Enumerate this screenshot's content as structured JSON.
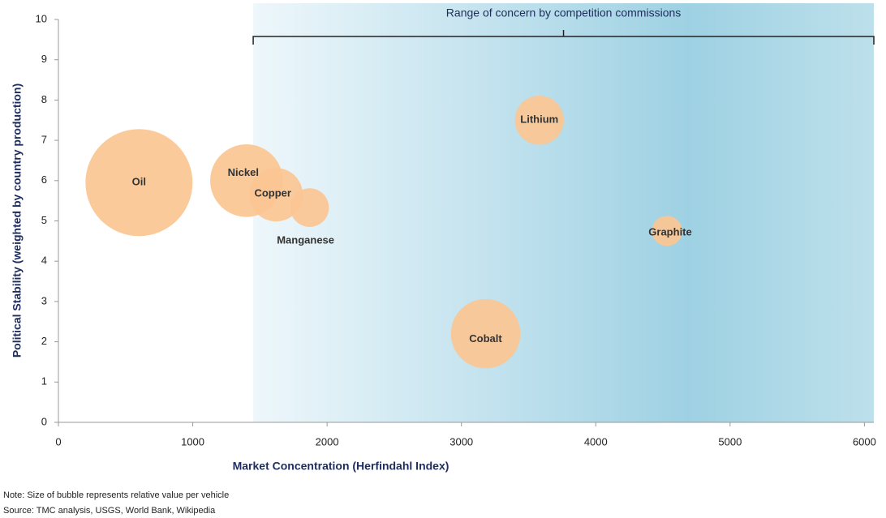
{
  "chart_data": {
    "type": "bubble",
    "xlabel": "Market Concentration (Herfindahl Index)",
    "ylabel": "Political Stability (weighted by country production)",
    "annotation": "Range of concern by competition commissions",
    "highlight_range": [
      1450,
      6070
    ],
    "labels": [
      "Oil",
      "Nickel",
      "Copper",
      "Manganese",
      "Lithium",
      "Graphite",
      "Cobalt"
    ],
    "x": [
      600,
      1400,
      1620,
      1870,
      3580,
      4530,
      3180
    ],
    "y": [
      5.95,
      6.0,
      5.65,
      5.33,
      7.5,
      4.75,
      2.2
    ],
    "size": [
      100,
      46,
      25,
      13,
      21,
      8,
      42
    ],
    "color": "#fbc592",
    "xlim": [
      0,
      6070
    ],
    "xticks": [
      0,
      1000,
      2000,
      3000,
      4000,
      5000,
      6000
    ],
    "ylim": [
      0,
      10
    ],
    "yticks": [
      0,
      1,
      2,
      3,
      4,
      5,
      6,
      7,
      8,
      9,
      10
    ],
    "notes": [
      "Note: Size of bubble represents relative value per vehicle",
      "Source: TMC analysis, USGS, World Bank, Wikipedia"
    ]
  }
}
